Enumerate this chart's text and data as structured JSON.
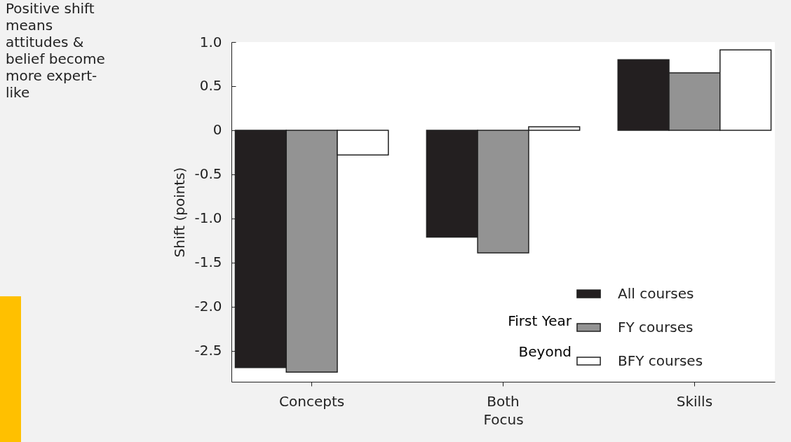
{
  "chart_data": {
    "type": "bar",
    "xlabel": "Focus",
    "ylabel": "Shift (points)",
    "categories": [
      "Concepts",
      "Both",
      "Skills"
    ],
    "series": [
      {
        "name": "All courses",
        "color": "#231f20",
        "values": [
          -2.69,
          -1.21,
          0.8
        ]
      },
      {
        "name": "FY courses",
        "color": "#939393",
        "values": [
          -2.74,
          -1.39,
          0.65
        ]
      },
      {
        "name": "BFY courses",
        "color": "#ffffff",
        "values": [
          -0.28,
          0.04,
          0.91
        ]
      }
    ],
    "ylim": [
      -2.85,
      1.0
    ],
    "yticks": [
      {
        "value": 1,
        "label": "1.0"
      },
      {
        "value": 0.5,
        "label": "0.5"
      },
      0,
      {
        "value": -0.5,
        "label": "-0.5"
      },
      {
        "value": -1,
        "label": "-1.0"
      },
      {
        "value": -1.5,
        "label": "-1.5"
      },
      {
        "value": -2,
        "label": "-2.0"
      },
      {
        "value": -2.5,
        "label": "-2.5"
      }
    ],
    "grid": false,
    "legend": "bottom right",
    "annotations": [
      "Positive shift means attitudes & belief become more expert-like",
      "First Year",
      "Beyond"
    ]
  }
}
